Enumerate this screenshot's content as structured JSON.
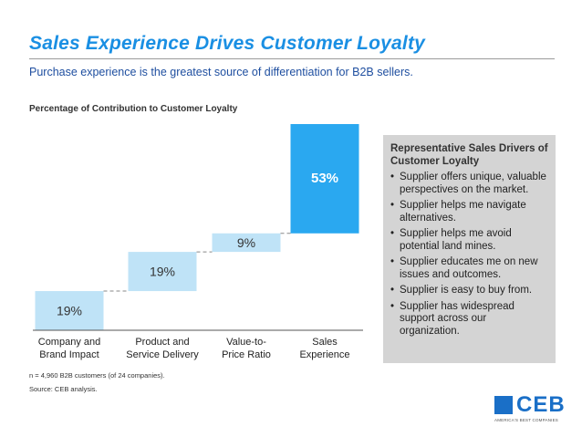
{
  "header": {
    "title": "Sales Experience Drives Customer Loyalty",
    "subtitle": "Purchase experience is the greatest source of differentiation for B2B sellers."
  },
  "chart_data": {
    "type": "bar",
    "subtype": "waterfall",
    "title": "Percentage of Contribution to Customer Loyalty",
    "categories": [
      [
        "Company and",
        "Brand Impact"
      ],
      [
        "Product and",
        "Service Delivery"
      ],
      [
        "Value-to-",
        "Price Ratio"
      ],
      [
        "Sales",
        "Experience"
      ]
    ],
    "values": [
      19,
      19,
      9,
      53
    ],
    "labels": [
      "19%",
      "19%",
      "9%",
      "53%"
    ],
    "ylim": [
      0,
      100
    ],
    "bar_color": "#2aa8f0",
    "light_bar_color": "#bfe3f7",
    "connector_style": "dashed"
  },
  "sidebar": {
    "heading": "Representative Sales Drivers of Customer Loyalty",
    "items": [
      "Supplier offers unique, valuable perspectives on the market.",
      "Supplier helps me navigate alternatives.",
      "Supplier helps me avoid potential land mines.",
      "Supplier educates me on new issues and outcomes.",
      "Supplier is easy to buy from.",
      "Supplier has widespread support across our organization."
    ],
    "bullet": "•"
  },
  "footer": {
    "footnote": "n = 4,960 B2B customers (of 24 companies).",
    "source": "Source: CEB analysis."
  },
  "logo": {
    "text": "CEB",
    "tagline": "AMERICA'S BEST COMPANIES"
  },
  "colors": {
    "title": "#1a8fe3",
    "subtitle": "#1f4fa0",
    "sidebar_bg": "#d4d4d4",
    "logo": "#1a6fc7"
  }
}
